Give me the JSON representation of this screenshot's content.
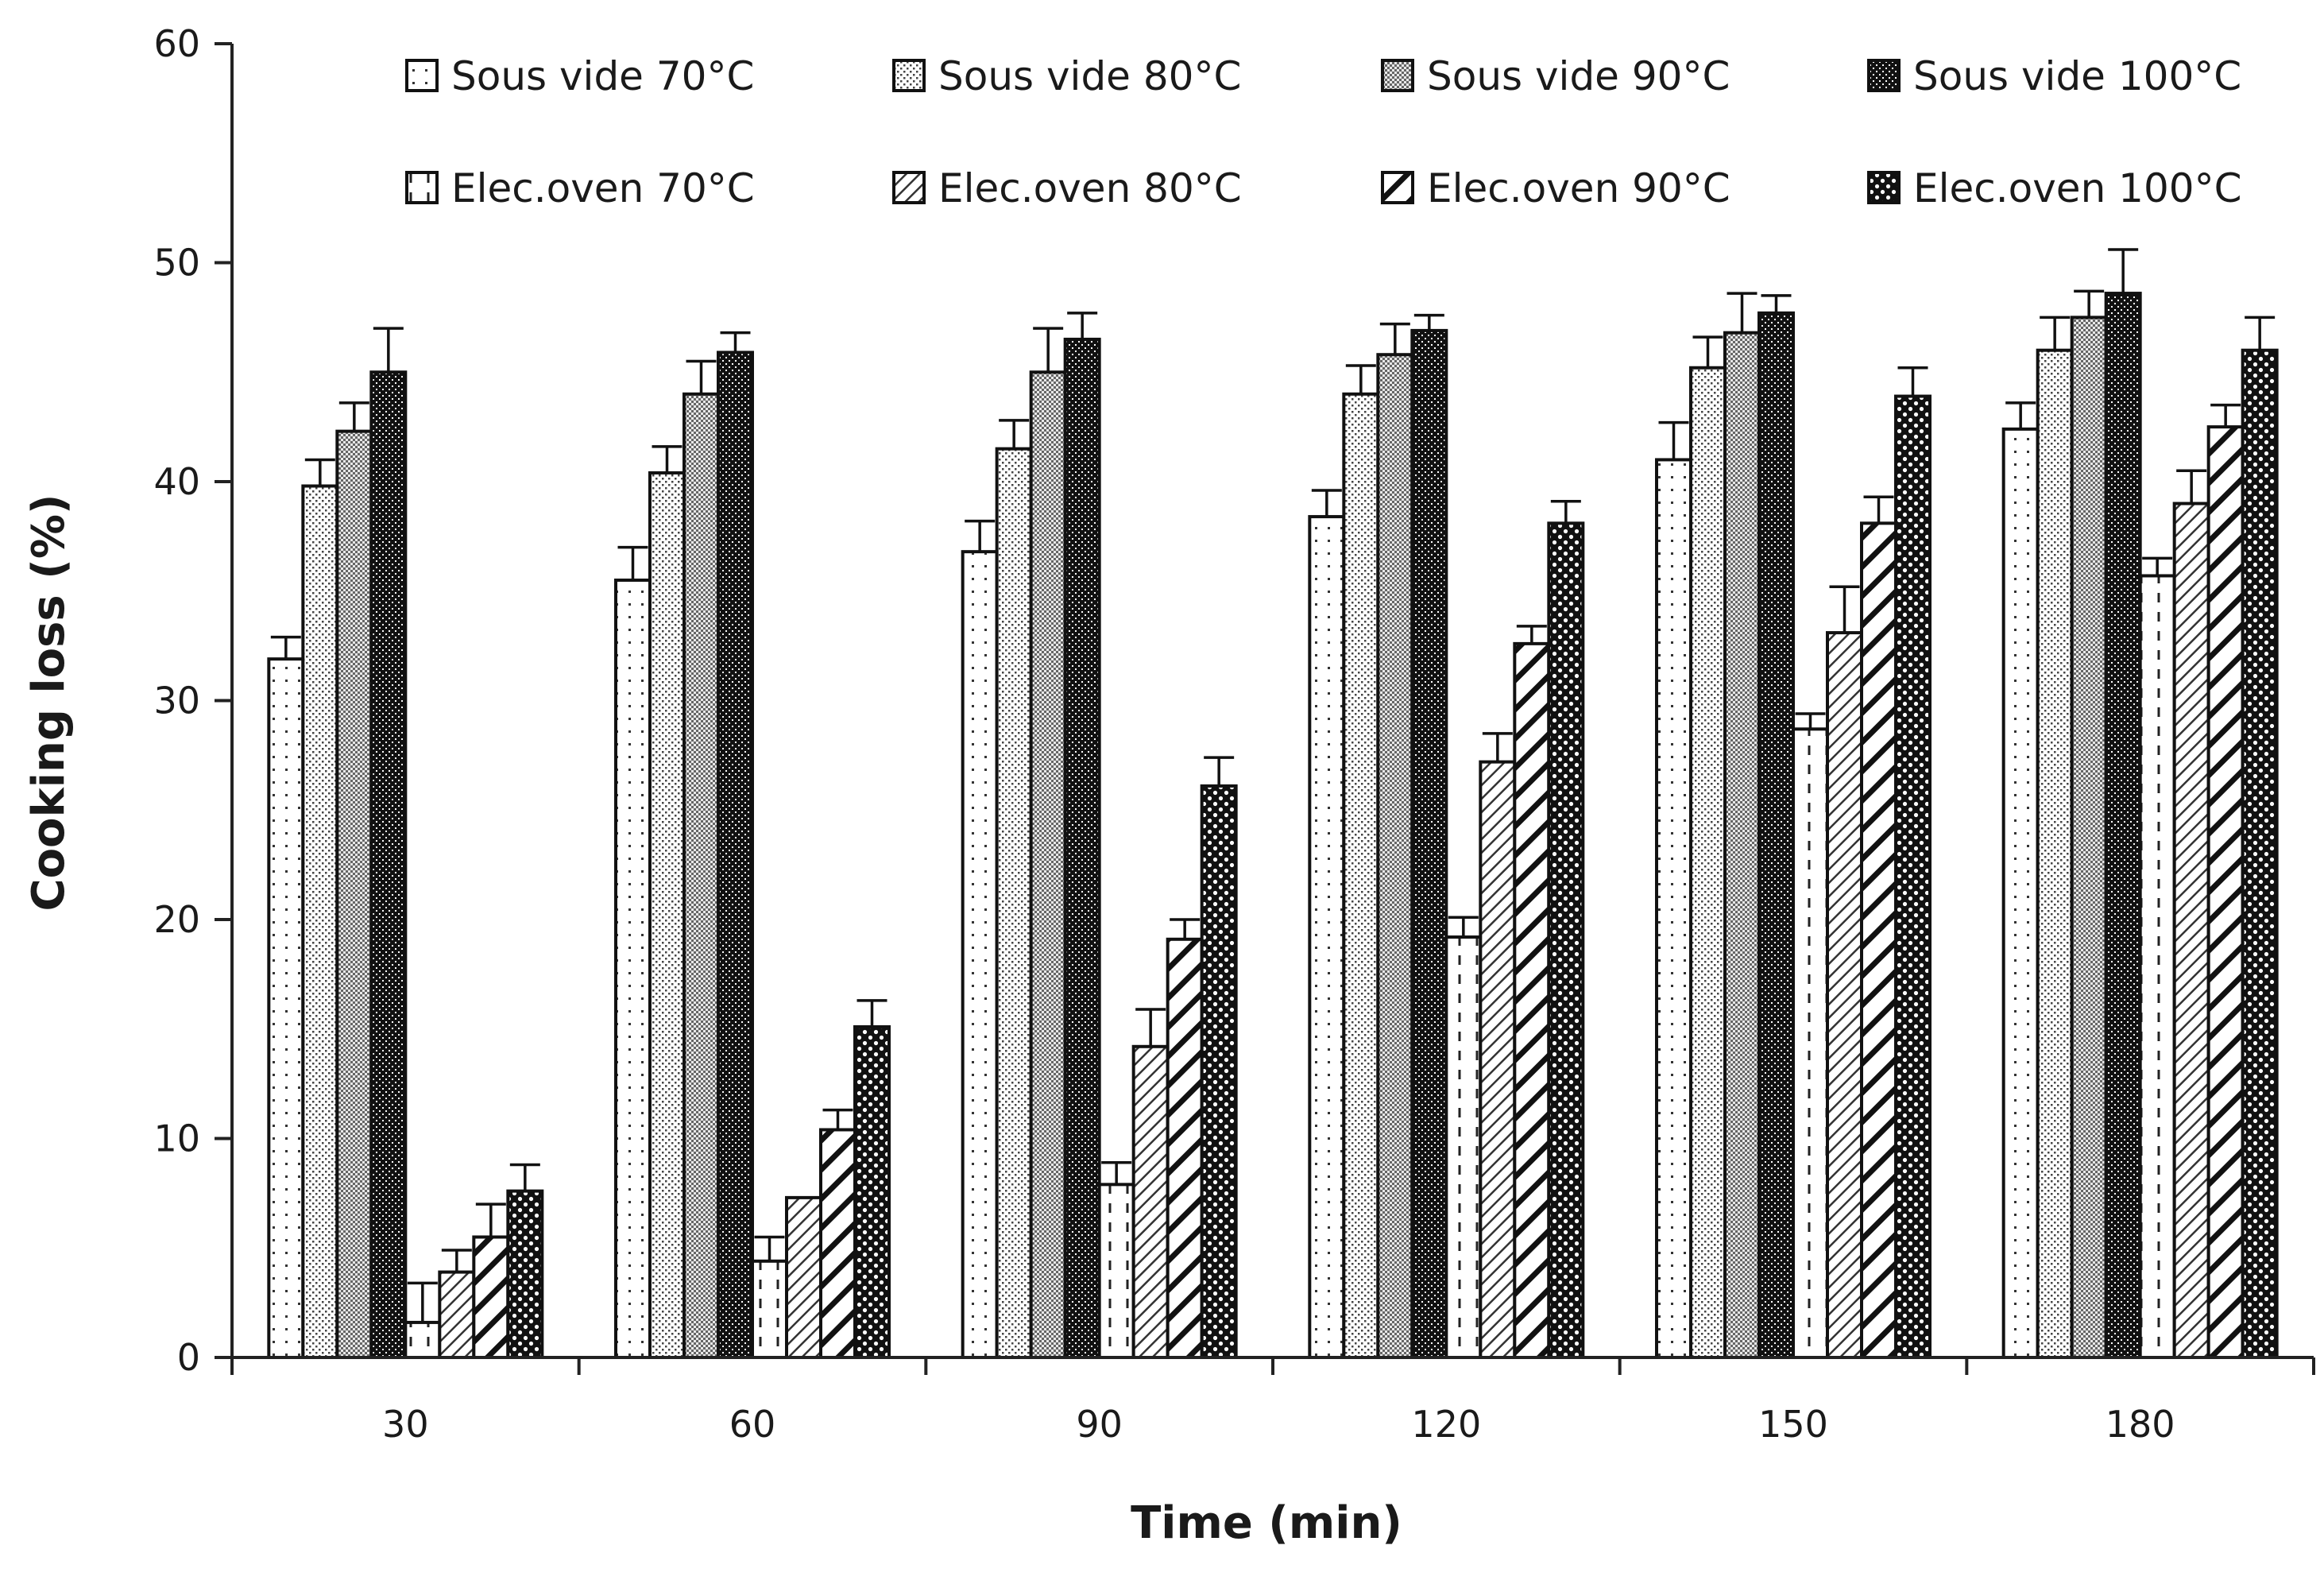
{
  "chart_data": {
    "type": "bar",
    "title": "",
    "xlabel": "Time (min)",
    "ylabel": "Cooking loss (%)",
    "ylim": [
      0,
      60
    ],
    "yticks": [
      0,
      10,
      20,
      30,
      40,
      50,
      60
    ],
    "grid": false,
    "legend_position": "top",
    "categories": [
      "30",
      "60",
      "90",
      "120",
      "150",
      "180"
    ],
    "series": [
      {
        "name": "Sous vide 70°C",
        "pattern": "sparse-dots",
        "values": [
          31.9,
          35.5,
          36.8,
          38.4,
          41.0,
          42.4
        ],
        "errors": [
          1.0,
          1.5,
          1.4,
          1.2,
          1.7,
          1.2
        ]
      },
      {
        "name": "Sous vide 80°C",
        "pattern": "dense-dots",
        "values": [
          39.8,
          40.4,
          41.5,
          44.0,
          45.2,
          46.0
        ],
        "errors": [
          1.2,
          1.2,
          1.3,
          1.3,
          1.4,
          1.5
        ]
      },
      {
        "name": "Sous vide 90°C",
        "pattern": "checker",
        "values": [
          42.3,
          44.0,
          45.0,
          45.8,
          46.8,
          47.5
        ],
        "errors": [
          1.3,
          1.5,
          2.0,
          1.4,
          1.8,
          1.2
        ]
      },
      {
        "name": "Sous vide 100°C",
        "pattern": "dark-checker",
        "values": [
          45.0,
          45.9,
          46.5,
          46.9,
          47.7,
          48.6
        ],
        "errors": [
          2.0,
          0.9,
          1.2,
          0.7,
          0.8,
          2.0
        ]
      },
      {
        "name": "Elec.oven 70°C",
        "pattern": "dashed",
        "values": [
          1.6,
          4.4,
          7.9,
          19.2,
          28.7,
          35.7
        ],
        "errors": [
          1.8,
          1.1,
          1.0,
          0.9,
          0.7,
          0.8
        ]
      },
      {
        "name": "Elec.oven 80°C",
        "pattern": "thin-diag",
        "values": [
          3.9,
          7.3,
          14.2,
          27.2,
          33.1,
          39.0
        ],
        "errors": [
          1.0,
          0.0,
          1.7,
          1.3,
          2.1,
          1.5
        ]
      },
      {
        "name": "Elec.oven 90°C",
        "pattern": "thick-diag",
        "values": [
          5.5,
          10.4,
          19.1,
          32.6,
          38.1,
          42.5
        ],
        "errors": [
          1.5,
          0.9,
          0.9,
          0.8,
          1.2,
          1.0
        ]
      },
      {
        "name": "Elec.oven 100°C",
        "pattern": "big-checker",
        "values": [
          7.6,
          15.1,
          26.1,
          38.1,
          43.9,
          46.0
        ],
        "errors": [
          1.2,
          1.2,
          1.3,
          1.0,
          1.3,
          1.5
        ]
      }
    ]
  }
}
